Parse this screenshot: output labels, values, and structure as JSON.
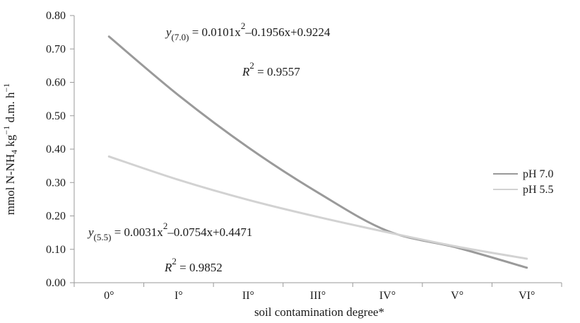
{
  "chart_data": {
    "type": "line",
    "x_label": "soil contamination degree*",
    "y_label": {
      "prefix": "mmol N-NH",
      "sub": "4",
      "mid": " kg",
      "sup1": "−1",
      "mid2": " d.m. h",
      "sup2": "−1"
    },
    "categories": [
      "0°",
      "I°",
      "II°",
      "III°",
      "IV°",
      "V°",
      "VI°"
    ],
    "y_ticks": [
      "0.00",
      "0.10",
      "0.20",
      "0.30",
      "0.40",
      "0.50",
      "0.60",
      "0.70",
      "0.80"
    ],
    "ylim": [
      0,
      0.8
    ],
    "legend_position": "right",
    "series": [
      {
        "name": "pH 7.0",
        "color": "#9a9a9a",
        "values": [
          0.737,
          0.561,
          0.405,
          0.27,
          0.155,
          0.105,
          0.045
        ]
      },
      {
        "name": "pH 5.5",
        "color": "#d2d2d2",
        "values": [
          0.378,
          0.308,
          0.248,
          0.197,
          0.151,
          0.108,
          0.072
        ]
      }
    ],
    "equations": [
      {
        "y": "y",
        "sub": "(7.0)",
        "body_1": " = 0.0101x",
        "exp": "2",
        "body_2": "–0.1956x+0.9224",
        "r2_label": "R",
        "r2_exp": "2",
        "r2_value": " = 0.9557"
      },
      {
        "y": "y",
        "sub": "(5.5)",
        "body_1": " = 0.0031x",
        "exp": "2",
        "body_2": "–0.0754x+0.4471",
        "r2_label": "R",
        "r2_exp": "2",
        "r2_value": " = 0.9852"
      }
    ]
  }
}
